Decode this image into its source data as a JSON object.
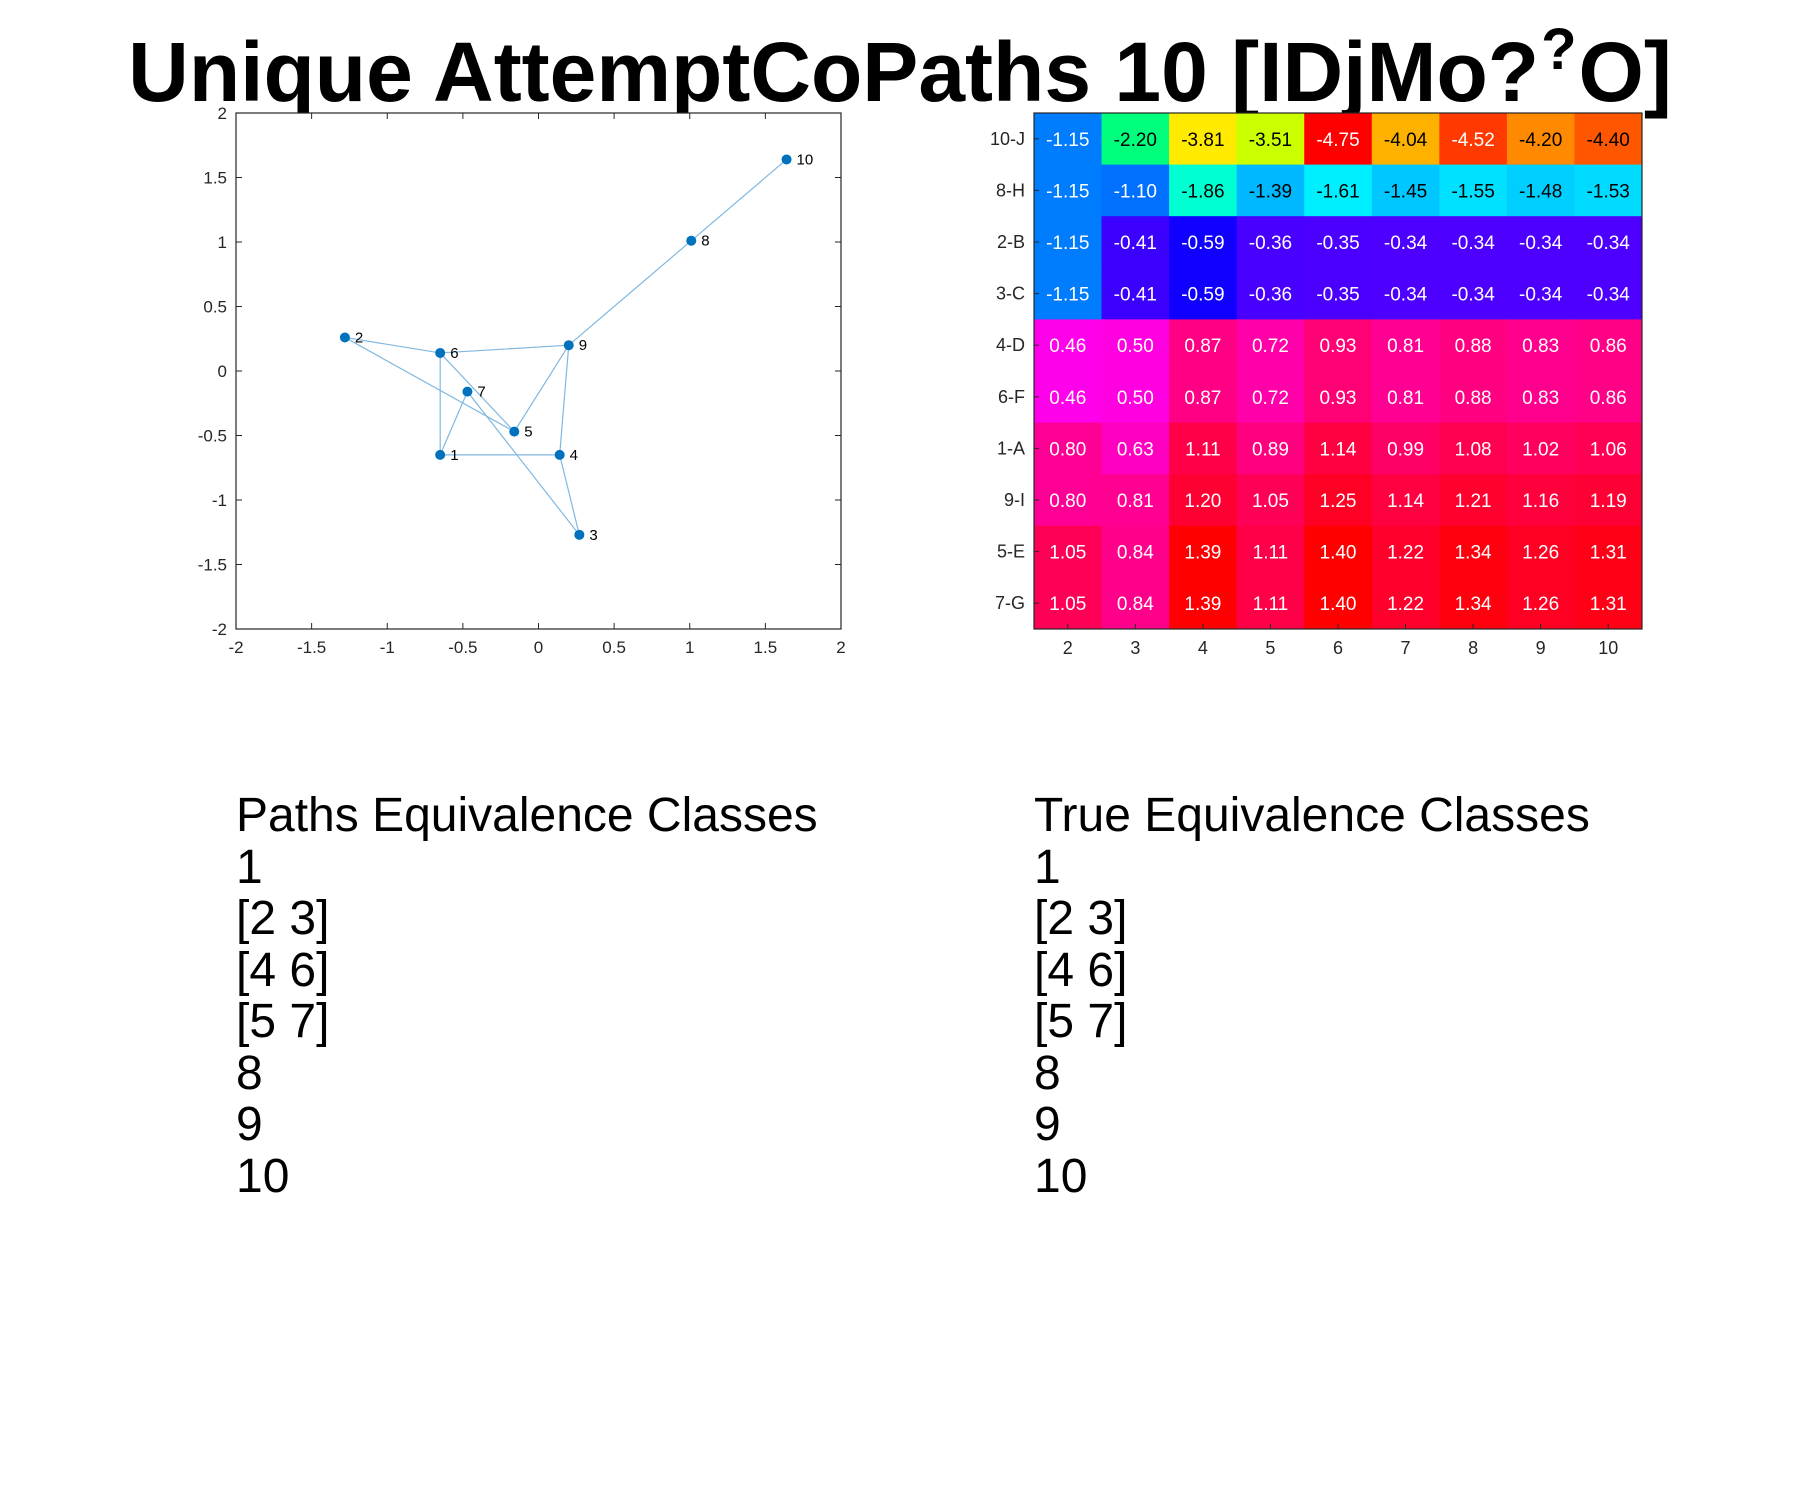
{
  "title": {
    "main": "Unique AttemptCoPaths 10 [IDjMo?",
    "sup": "?",
    "tail": "O]"
  },
  "chart_data": [
    {
      "type": "scatter",
      "subtype": "network-graph",
      "xlim": [
        -2,
        2
      ],
      "ylim": [
        -2,
        2
      ],
      "xticks": [
        "-2",
        "-1.5",
        "-1",
        "-0.5",
        "0",
        "0.5",
        "1",
        "1.5",
        "2"
      ],
      "yticks": [
        "-2",
        "-1.5",
        "-1",
        "-0.5",
        "0",
        "0.5",
        "1",
        "1.5",
        "2"
      ],
      "grid": false,
      "node_color": "#0072bd",
      "edge_color": "#80b8e0",
      "nodes": [
        {
          "label": "1",
          "x": -0.65,
          "y": -0.65
        },
        {
          "label": "2",
          "x": -1.28,
          "y": 0.26
        },
        {
          "label": "3",
          "x": 0.27,
          "y": -1.27
        },
        {
          "label": "4",
          "x": 0.14,
          "y": -0.65
        },
        {
          "label": "5",
          "x": -0.16,
          "y": -0.47
        },
        {
          "label": "6",
          "x": -0.65,
          "y": 0.14
        },
        {
          "label": "7",
          "x": -0.47,
          "y": -0.16
        },
        {
          "label": "8",
          "x": 1.01,
          "y": 1.01
        },
        {
          "label": "9",
          "x": 0.2,
          "y": 0.2
        },
        {
          "label": "10",
          "x": 1.64,
          "y": 1.64
        }
      ],
      "edges": [
        [
          1,
          4
        ],
        [
          1,
          6
        ],
        [
          1,
          7
        ],
        [
          2,
          6
        ],
        [
          2,
          5
        ],
        [
          3,
          4
        ],
        [
          3,
          7
        ],
        [
          4,
          9
        ],
        [
          5,
          6
        ],
        [
          5,
          9
        ],
        [
          6,
          9
        ],
        [
          8,
          9
        ],
        [
          8,
          10
        ]
      ]
    },
    {
      "type": "heatmap",
      "colormap": "hsv",
      "columns": [
        "2",
        "3",
        "4",
        "5",
        "6",
        "7",
        "8",
        "9",
        "10"
      ],
      "rows": [
        "10-J",
        "8-H",
        "2-B",
        "3-C",
        "4-D",
        "6-F",
        "1-A",
        "9-I",
        "5-E",
        "7-G"
      ],
      "values": [
        [
          -1.15,
          -2.2,
          -3.81,
          -3.51,
          -4.75,
          -4.04,
          -4.52,
          -4.2,
          -4.4
        ],
        [
          -1.15,
          -1.1,
          -1.86,
          -1.39,
          -1.61,
          -1.45,
          -1.55,
          -1.48,
          -1.53
        ],
        [
          -1.15,
          -0.41,
          -0.59,
          -0.36,
          -0.35,
          -0.34,
          -0.34,
          -0.34,
          -0.34
        ],
        [
          -1.15,
          -0.41,
          -0.59,
          -0.36,
          -0.35,
          -0.34,
          -0.34,
          -0.34,
          -0.34
        ],
        [
          0.46,
          0.5,
          0.87,
          0.72,
          0.93,
          0.81,
          0.88,
          0.83,
          0.86
        ],
        [
          0.46,
          0.5,
          0.87,
          0.72,
          0.93,
          0.81,
          0.88,
          0.83,
          0.86
        ],
        [
          0.8,
          0.63,
          1.11,
          0.89,
          1.14,
          0.99,
          1.08,
          1.02,
          1.06
        ],
        [
          0.8,
          0.81,
          1.2,
          1.05,
          1.25,
          1.14,
          1.21,
          1.16,
          1.19
        ],
        [
          1.05,
          0.84,
          1.39,
          1.11,
          1.4,
          1.22,
          1.34,
          1.26,
          1.31
        ],
        [
          1.05,
          0.84,
          1.39,
          1.11,
          1.4,
          1.22,
          1.34,
          1.26,
          1.31
        ]
      ]
    }
  ],
  "paths_classes": {
    "header": "Paths Equivalence Classes",
    "items": [
      "1",
      "[2 3]",
      "[4 6]",
      "[5 7]",
      "8",
      "9",
      "10"
    ]
  },
  "true_classes": {
    "header": "True Equivalence Classes",
    "items": [
      "1",
      "[2 3]",
      "[4 6]",
      "[5 7]",
      "8",
      "9",
      "10"
    ]
  }
}
